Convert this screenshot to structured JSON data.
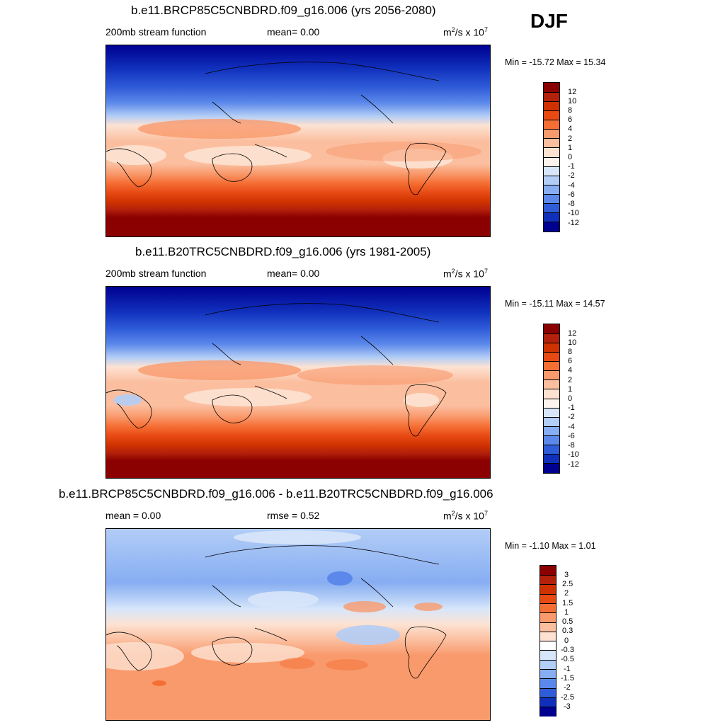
{
  "season": "DJF",
  "panels": [
    {
      "title": "b.e11.BRCP85C5CNBDRD.f09_g16.006 (yrs 2056-2080)",
      "left_label": "200mb stream function",
      "mid_label": "mean=   0.00",
      "units_base": "m",
      "units_sup1": "2",
      "units_mid": "/s x 10",
      "units_sup2": "7",
      "minmax": "Min = -15.72 Max =  15.34",
      "levels": [
        "12",
        "10",
        "8",
        "6",
        "4",
        "2",
        "1",
        "0",
        "-1",
        "-2",
        "-4",
        "-6",
        "-8",
        "-10",
        "-12"
      ],
      "colors": [
        "#8b0000",
        "#b3200b",
        "#cf3200",
        "#e84a14",
        "#f56f35",
        "#f99a6d",
        "#fbbfa0",
        "#fde2d2",
        "#fef4ee",
        "#d8e6fa",
        "#b2cdf6",
        "#87adf2",
        "#5b88ea",
        "#2f5cd8",
        "#1030bc",
        "#000090"
      ]
    },
    {
      "title": "b.e11.B20TRC5CNBDRD.f09_g16.006 (yrs 1981-2005)",
      "left_label": "200mb stream function",
      "mid_label": "mean=   0.00",
      "units_base": "m",
      "units_sup1": "2",
      "units_mid": "/s x 10",
      "units_sup2": "7",
      "minmax": "Min = -15.11 Max =  14.57",
      "levels": [
        "12",
        "10",
        "8",
        "6",
        "4",
        "2",
        "1",
        "0",
        "-1",
        "-2",
        "-4",
        "-6",
        "-8",
        "-10",
        "-12"
      ],
      "colors": [
        "#8b0000",
        "#b3200b",
        "#cf3200",
        "#e84a14",
        "#f56f35",
        "#f99a6d",
        "#fbbfa0",
        "#fde2d2",
        "#fef4ee",
        "#d8e6fa",
        "#b2cdf6",
        "#87adf2",
        "#5b88ea",
        "#2f5cd8",
        "#1030bc",
        "#000090"
      ]
    },
    {
      "title": "b.e11.BRCP85C5CNBDRD.f09_g16.006 - b.e11.B20TRC5CNBDRD.f09_g16.006",
      "left_label": "mean =   0.00",
      "mid_label": "rmse =   0.52",
      "units_base": "m",
      "units_sup1": "2",
      "units_mid": "/s x 10",
      "units_sup2": "7",
      "minmax": "Min =  -1.10 Max =   1.01",
      "levels": [
        "3",
        "2.5",
        "2",
        "1.5",
        "1",
        "0.5",
        "0.3",
        "0",
        "-0.3",
        "-0.5",
        "-1",
        "-1.5",
        "-2",
        "-2.5",
        "-3"
      ],
      "colors": [
        "#8b0000",
        "#b3200b",
        "#cf3200",
        "#e84a14",
        "#f56f35",
        "#f99a6d",
        "#fbbfa0",
        "#fde2d2",
        "#ffffff",
        "#d8e6fa",
        "#b2cdf6",
        "#87adf2",
        "#5b88ea",
        "#2f5cd8",
        "#1030bc",
        "#000090"
      ]
    }
  ]
}
